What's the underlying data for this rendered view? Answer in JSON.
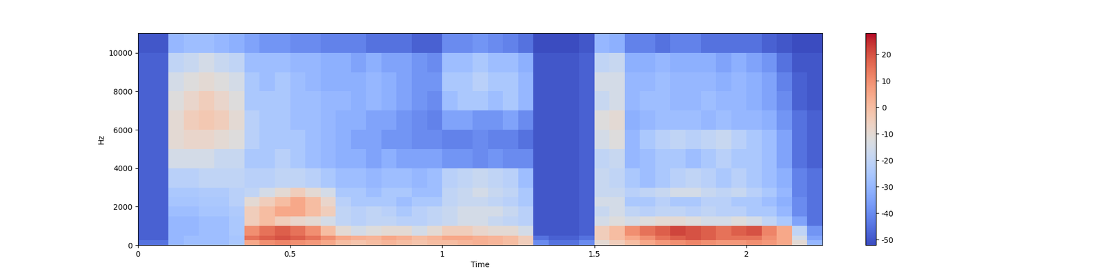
{
  "chart_data": {
    "type": "spectrogram",
    "xlabel": "Time",
    "ylabel": "Hz",
    "color": "coolwarm",
    "xlim": [
      0,
      2.25
    ],
    "xticks": [
      0,
      0.5,
      1,
      1.5,
      2
    ],
    "ylim": [
      0,
      11025
    ],
    "yticks": [
      0,
      2000,
      4000,
      6000,
      8000,
      10000
    ],
    "colorbar_lim": [
      -52,
      28
    ],
    "colorbar_ticks": [
      -50,
      -40,
      -30,
      -20,
      -10,
      0,
      10,
      20
    ],
    "time_edges": [
      0,
      0.05,
      0.1,
      0.15,
      0.2,
      0.25,
      0.3,
      0.35,
      0.4,
      0.45,
      0.5,
      0.55,
      0.6,
      0.65,
      0.7,
      0.75,
      0.8,
      0.85,
      0.9,
      0.95,
      1.0,
      1.05,
      1.1,
      1.15,
      1.2,
      1.25,
      1.3,
      1.35,
      1.4,
      1.45,
      1.5,
      1.55,
      1.6,
      1.65,
      1.7,
      1.75,
      1.8,
      1.85,
      1.9,
      1.95,
      2.0,
      2.05,
      2.1,
      2.15,
      2.2,
      2.25
    ],
    "freq_edges": [
      0,
      250,
      500,
      1000,
      1500,
      2000,
      2500,
      3000,
      4000,
      5000,
      6000,
      7000,
      8000,
      9000,
      10000,
      11025
    ],
    "cells": [
      [
        -45,
        -45,
        -30,
        -28,
        -28,
        -28,
        -25,
        5,
        10,
        12,
        10,
        8,
        5,
        0,
        -2,
        0,
        2,
        0,
        -2,
        0,
        0,
        2,
        3,
        2,
        0,
        -5,
        -40,
        -45,
        -45,
        -40,
        -10,
        -5,
        0,
        5,
        8,
        10,
        12,
        10,
        8,
        8,
        10,
        8,
        5,
        -10,
        -30
      ],
      [
        -48,
        -48,
        -30,
        -28,
        -28,
        -28,
        -26,
        15,
        18,
        20,
        18,
        15,
        10,
        5,
        3,
        2,
        5,
        3,
        0,
        2,
        5,
        5,
        3,
        2,
        0,
        -5,
        -45,
        -48,
        -48,
        -45,
        -5,
        0,
        5,
        10,
        15,
        18,
        20,
        18,
        15,
        15,
        15,
        10,
        5,
        -15,
        -35
      ],
      [
        -48,
        -48,
        -30,
        -30,
        -28,
        -28,
        -25,
        10,
        15,
        18,
        15,
        10,
        0,
        -10,
        -15,
        -12,
        -10,
        -10,
        -15,
        -10,
        -5,
        -5,
        -8,
        -10,
        -10,
        -15,
        -50,
        -50,
        -50,
        -48,
        -5,
        0,
        10,
        15,
        18,
        22,
        20,
        18,
        15,
        18,
        20,
        12,
        5,
        -20,
        -38
      ],
      [
        -48,
        -48,
        -30,
        -30,
        -28,
        -28,
        -25,
        -5,
        0,
        -5,
        -8,
        -10,
        -15,
        -20,
        -22,
        -20,
        -20,
        -22,
        -22,
        -20,
        -18,
        -15,
        -15,
        -18,
        -20,
        -22,
        -50,
        -50,
        -50,
        -48,
        -15,
        -12,
        -15,
        -12,
        -10,
        -10,
        -12,
        -15,
        -15,
        -12,
        -15,
        -20,
        -25,
        -35,
        -45
      ],
      [
        -48,
        -48,
        -28,
        -28,
        -26,
        -26,
        -24,
        -5,
        0,
        5,
        5,
        0,
        -5,
        -20,
        -22,
        -20,
        -22,
        -25,
        -22,
        -20,
        -18,
        -15,
        -15,
        -15,
        -18,
        -22,
        -50,
        -50,
        -50,
        -48,
        -18,
        -15,
        -20,
        -22,
        -20,
        -20,
        -22,
        -20,
        -22,
        -22,
        -25,
        -25,
        -30,
        -40,
        -45
      ],
      [
        -48,
        -48,
        -26,
        -26,
        -25,
        -25,
        -22,
        -10,
        -5,
        0,
        5,
        0,
        -8,
        -22,
        -25,
        -25,
        -25,
        -28,
        -25,
        -25,
        -20,
        -18,
        -18,
        -20,
        -22,
        -25,
        -50,
        -50,
        -50,
        -48,
        -15,
        -15,
        -25,
        -25,
        -22,
        -25,
        -25,
        -22,
        -22,
        -25,
        -25,
        -28,
        -32,
        -40,
        -45
      ],
      [
        -48,
        -48,
        -25,
        -25,
        -24,
        -24,
        -22,
        -20,
        -15,
        -10,
        -5,
        -10,
        -15,
        -25,
        -25,
        -28,
        -25,
        -25,
        -28,
        -28,
        -20,
        -18,
        -15,
        -18,
        -20,
        -25,
        -50,
        -50,
        -50,
        -48,
        -18,
        -18,
        -22,
        -20,
        -18,
        -15,
        -15,
        -18,
        -20,
        -18,
        -22,
        -25,
        -30,
        -42,
        -45
      ],
      [
        -48,
        -48,
        -22,
        -22,
        -20,
        -20,
        -20,
        -22,
        -22,
        -20,
        -20,
        -22,
        -25,
        -28,
        -28,
        -30,
        -28,
        -28,
        -30,
        -28,
        -22,
        -20,
        -18,
        -20,
        -22,
        -28,
        -50,
        -50,
        -50,
        -48,
        -18,
        -20,
        -25,
        -28,
        -25,
        -22,
        -20,
        -22,
        -25,
        -22,
        -25,
        -28,
        -32,
        -42,
        -45
      ],
      [
        -48,
        -48,
        -15,
        -15,
        -15,
        -18,
        -18,
        -25,
        -25,
        -22,
        -25,
        -28,
        -30,
        -32,
        -32,
        -35,
        -32,
        -35,
        -35,
        -35,
        -38,
        -38,
        -40,
        -38,
        -40,
        -40,
        -50,
        -50,
        -50,
        -48,
        -20,
        -18,
        -30,
        -28,
        -25,
        -25,
        -28,
        -25,
        -22,
        -25,
        -25,
        -28,
        -35,
        -45,
        -48
      ],
      [
        -48,
        -48,
        -10,
        -8,
        -8,
        -10,
        -12,
        -22,
        -25,
        -25,
        -25,
        -28,
        -30,
        -32,
        -35,
        -35,
        -38,
        -38,
        -40,
        -40,
        -42,
        -42,
        -40,
        -42,
        -42,
        -45,
        -50,
        -50,
        -50,
        -48,
        -15,
        -12,
        -30,
        -25,
        -22,
        -20,
        -22,
        -20,
        -18,
        -22,
        -25,
        -28,
        -35,
        -45,
        -48
      ],
      [
        -48,
        -48,
        -10,
        -5,
        -3,
        -5,
        -10,
        -22,
        -25,
        -25,
        -28,
        -28,
        -30,
        -32,
        -32,
        -35,
        -35,
        -38,
        -40,
        -42,
        -35,
        -35,
        -38,
        -38,
        -35,
        -40,
        -50,
        -50,
        -50,
        -48,
        -12,
        -10,
        -32,
        -30,
        -28,
        -28,
        -28,
        -30,
        -28,
        -30,
        -30,
        -32,
        -38,
        -45,
        -48
      ],
      [
        -48,
        -48,
        -12,
        -8,
        -5,
        -8,
        -12,
        -25,
        -25,
        -25,
        -28,
        -28,
        -30,
        -30,
        -32,
        -30,
        -32,
        -35,
        -38,
        -40,
        -28,
        -25,
        -25,
        -28,
        -25,
        -30,
        -50,
        -50,
        -50,
        -48,
        -18,
        -15,
        -30,
        -28,
        -28,
        -30,
        -30,
        -28,
        -30,
        -30,
        -32,
        -35,
        -40,
        -48,
        -50
      ],
      [
        -48,
        -48,
        -15,
        -12,
        -10,
        -12,
        -15,
        -25,
        -28,
        -25,
        -28,
        -30,
        -32,
        -32,
        -32,
        -30,
        -32,
        -35,
        -38,
        -38,
        -25,
        -25,
        -22,
        -25,
        -25,
        -30,
        -50,
        -50,
        -50,
        -48,
        -15,
        -15,
        -30,
        -30,
        -28,
        -30,
        -30,
        -30,
        -32,
        -30,
        -32,
        -35,
        -42,
        -48,
        -50
      ],
      [
        -48,
        -48,
        -20,
        -18,
        -15,
        -18,
        -20,
        -28,
        -28,
        -28,
        -30,
        -30,
        -32,
        -32,
        -35,
        -32,
        -35,
        -35,
        -38,
        -40,
        -28,
        -28,
        -25,
        -28,
        -28,
        -32,
        -50,
        -50,
        -50,
        -48,
        -20,
        -18,
        -32,
        -32,
        -30,
        -32,
        -32,
        -32,
        -35,
        -32,
        -35,
        -38,
        -45,
        -50,
        -50
      ],
      [
        -50,
        -50,
        -30,
        -28,
        -28,
        -30,
        -32,
        -35,
        -38,
        -38,
        -40,
        -40,
        -42,
        -42,
        -42,
        -45,
        -45,
        -45,
        -48,
        -48,
        -40,
        -40,
        -38,
        -40,
        -42,
        -45,
        -52,
        -52,
        -52,
        -50,
        -30,
        -32,
        -42,
        -42,
        -45,
        -42,
        -42,
        -45,
        -45,
        -45,
        -45,
        -48,
        -50,
        -52,
        -52
      ]
    ]
  }
}
